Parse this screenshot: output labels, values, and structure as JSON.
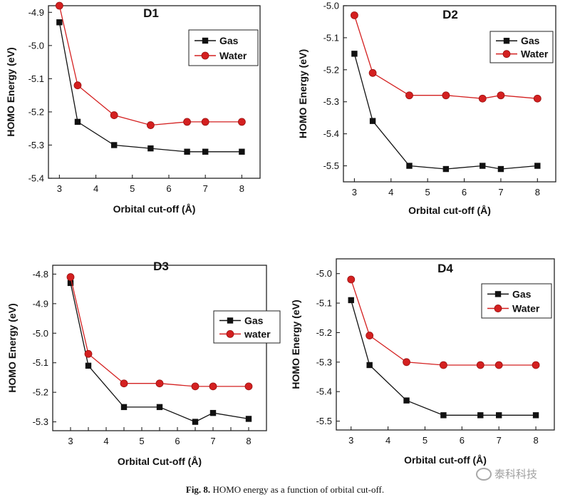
{
  "colors": {
    "gas": "#111111",
    "water": "#d42020",
    "axis": "#222222"
  },
  "figure": {
    "caption_label": "Fig. 8.",
    "caption_text": "HOMO energy as a function of orbital cut-off.",
    "watermark_text": "泰科科技",
    "watermark_icon": "wechat-logo-icon"
  },
  "chart_data": [
    {
      "type": "line",
      "title": "D1",
      "xlabel": "Orbital cut-off (Å)",
      "ylabel": "HOMO Energy (eV)",
      "xlim": [
        2.7,
        8.5
      ],
      "ylim": [
        -5.4,
        -4.88
      ],
      "xticks": [
        3,
        4,
        5,
        6,
        7,
        8
      ],
      "yticks": [
        -5.4,
        -5.3,
        -5.2,
        -5.1,
        -5.0,
        -4.9
      ],
      "legend_position": "top-right",
      "x": [
        3,
        3.5,
        4.5,
        5.5,
        6.5,
        7,
        8
      ],
      "series": [
        {
          "name": "Gas",
          "marker": "square",
          "values": [
            -4.93,
            -5.23,
            -5.3,
            -5.31,
            -5.32,
            -5.32,
            -5.32
          ]
        },
        {
          "name": "Water",
          "marker": "circle",
          "values": [
            -4.88,
            -5.12,
            -5.21,
            -5.24,
            -5.23,
            -5.23,
            -5.23
          ]
        }
      ]
    },
    {
      "type": "line",
      "title": "D2",
      "xlabel": "Orbital cut-off (Å)",
      "ylabel": "HOMO Energy (eV)",
      "xlim": [
        2.7,
        8.5
      ],
      "ylim": [
        -5.55,
        -5.0
      ],
      "xticks": [
        3,
        4,
        5,
        6,
        7,
        8
      ],
      "yticks": [
        -5.5,
        -5.4,
        -5.3,
        -5.2,
        -5.1,
        -5.0
      ],
      "legend_position": "top-right",
      "x": [
        3,
        3.5,
        4.5,
        5.5,
        6.5,
        7,
        8
      ],
      "series": [
        {
          "name": "Gas",
          "marker": "square",
          "values": [
            -5.15,
            -5.36,
            -5.5,
            -5.51,
            -5.5,
            -5.51,
            -5.5
          ]
        },
        {
          "name": "Water",
          "marker": "circle",
          "values": [
            -5.03,
            -5.21,
            -5.28,
            -5.28,
            -5.29,
            -5.28,
            -5.29
          ]
        }
      ]
    },
    {
      "type": "line",
      "title": "D3",
      "xlabel": "Orbital Cut-off (Å)",
      "ylabel": "HOMO Energy (eV)",
      "xlim": [
        2.5,
        8.5
      ],
      "ylim": [
        -5.33,
        -4.77
      ],
      "xticks": [
        3,
        3.5,
        4,
        4.5,
        5,
        5.5,
        6,
        6.5,
        7,
        7.5,
        8
      ],
      "xtick_labels": [
        "3",
        "",
        "4",
        "",
        "5",
        "",
        "6",
        "",
        "7",
        "",
        "8"
      ],
      "yticks": [
        -5.3,
        -5.2,
        -5.1,
        -5.0,
        -4.9,
        -4.8
      ],
      "legend_position": "middle-right",
      "x": [
        3,
        3.5,
        4.5,
        5.5,
        6.5,
        7,
        8
      ],
      "series": [
        {
          "name": "Gas",
          "marker": "square",
          "values": [
            -4.83,
            -5.11,
            -5.25,
            -5.25,
            -5.3,
            -5.27,
            -5.29
          ]
        },
        {
          "name": "water",
          "marker": "circle",
          "values": [
            -4.81,
            -5.07,
            -5.17,
            -5.17,
            -5.18,
            -5.18,
            -5.18
          ]
        }
      ]
    },
    {
      "type": "line",
      "title": "D4",
      "xlabel": "Orbital cut-off (Å)",
      "ylabel": "HOMO Energy (eV)",
      "xlim": [
        2.6,
        8.5
      ],
      "ylim": [
        -5.53,
        -4.95
      ],
      "xticks": [
        3,
        4,
        5,
        6,
        7,
        8
      ],
      "yticks": [
        -5.5,
        -5.4,
        -5.3,
        -5.2,
        -5.1,
        -5.0
      ],
      "legend_position": "top-right",
      "x": [
        3,
        3.5,
        4.5,
        5.5,
        6.5,
        7,
        8
      ],
      "series": [
        {
          "name": "Gas",
          "marker": "square",
          "values": [
            -5.09,
            -5.31,
            -5.43,
            -5.48,
            -5.48,
            -5.48,
            -5.48
          ]
        },
        {
          "name": "Water",
          "marker": "circle",
          "values": [
            -5.02,
            -5.21,
            -5.3,
            -5.31,
            -5.31,
            -5.31,
            -5.31
          ]
        }
      ]
    }
  ]
}
